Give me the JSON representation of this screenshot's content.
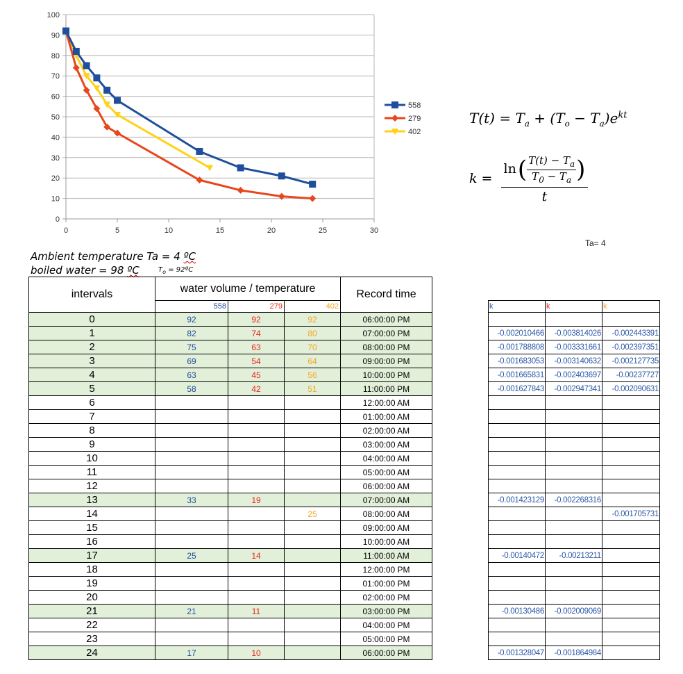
{
  "chart_data": {
    "type": "line",
    "title": "",
    "xlabel": "",
    "ylabel": "",
    "xlim": [
      0,
      30
    ],
    "ylim": [
      0,
      100
    ],
    "x_ticks": [
      0,
      5,
      10,
      15,
      20,
      25,
      30
    ],
    "y_ticks": [
      0,
      10,
      20,
      30,
      40,
      50,
      60,
      70,
      80,
      90,
      100
    ],
    "grid": "horizontal",
    "legend_position": "right",
    "series": [
      {
        "name": "558",
        "color": "#1f4e9c",
        "marker": "square",
        "points": [
          [
            0,
            92
          ],
          [
            1,
            82
          ],
          [
            2,
            75
          ],
          [
            3,
            69
          ],
          [
            4,
            63
          ],
          [
            5,
            58
          ],
          [
            13,
            33
          ],
          [
            17,
            25
          ],
          [
            21,
            21
          ],
          [
            24,
            17
          ]
        ]
      },
      {
        "name": "279",
        "color": "#e8461b",
        "marker": "diamond",
        "points": [
          [
            0,
            92
          ],
          [
            1,
            74
          ],
          [
            2,
            63
          ],
          [
            3,
            54
          ],
          [
            4,
            45
          ],
          [
            5,
            42
          ],
          [
            13,
            19
          ],
          [
            17,
            14
          ],
          [
            21,
            11
          ],
          [
            24,
            10
          ]
        ]
      },
      {
        "name": "402",
        "color": "#ffd21a",
        "marker": "triangle",
        "points": [
          [
            0,
            92
          ],
          [
            1,
            80
          ],
          [
            2,
            70
          ],
          [
            3,
            64
          ],
          [
            4,
            56
          ],
          [
            5,
            51
          ],
          [
            14,
            25
          ]
        ]
      }
    ]
  },
  "formula_text": {
    "eq1_lhs": "T(t) = T",
    "eq1_a": "a",
    "eq1_mid": " + (T",
    "eq1_o": "o",
    "eq1_minus": " − T",
    "eq1_a2": "a",
    "eq1_e": ")e",
    "eq1_exp": "kt",
    "k_lhs": "k =",
    "ln": "ln",
    "inner_num": "T(t) − T",
    "inner_num_sub": "a",
    "inner_den": "T",
    "inner_den_sub0": "0",
    "inner_den_minus": " − T",
    "inner_den_sub": "a",
    "den_t": "t"
  },
  "ta_note": "Ta= 4",
  "notes": {
    "ambient_pre": "Ambient temperature Ta = 4 ",
    "ambient_unit": "ºC",
    "boiled_pre": "boiled water = 98 ",
    "boiled_unit": "ºC",
    "t0_sym": "T",
    "t0_sub": "o",
    "t0_val": " = 92ºC"
  },
  "table": {
    "intervals_header": "intervals",
    "volume_header": "water volume / temperature",
    "record_header": "Record time",
    "volumes": [
      "558",
      "279",
      "402"
    ],
    "rows": [
      {
        "i": "0",
        "a": "92",
        "b": "92",
        "c": "92",
        "t": "06:00:00 PM",
        "g": true
      },
      {
        "i": "1",
        "a": "82",
        "b": "74",
        "c": "80",
        "t": "07:00:00 PM",
        "g": true
      },
      {
        "i": "2",
        "a": "75",
        "b": "63",
        "c": "70",
        "t": "08:00:00 PM",
        "g": true
      },
      {
        "i": "3",
        "a": "69",
        "b": "54",
        "c": "64",
        "t": "09:00:00 PM",
        "g": true
      },
      {
        "i": "4",
        "a": "63",
        "b": "45",
        "c": "56",
        "t": "10:00:00 PM",
        "g": true
      },
      {
        "i": "5",
        "a": "58",
        "b": "42",
        "c": "51",
        "t": "11:00:00 PM",
        "g": true
      },
      {
        "i": "6",
        "a": "",
        "b": "",
        "c": "",
        "t": "12:00:00 AM",
        "g": false
      },
      {
        "i": "7",
        "a": "",
        "b": "",
        "c": "",
        "t": "01:00:00 AM",
        "g": false
      },
      {
        "i": "8",
        "a": "",
        "b": "",
        "c": "",
        "t": "02:00:00 AM",
        "g": false
      },
      {
        "i": "9",
        "a": "",
        "b": "",
        "c": "",
        "t": "03:00:00 AM",
        "g": false
      },
      {
        "i": "10",
        "a": "",
        "b": "",
        "c": "",
        "t": "04:00:00 AM",
        "g": false
      },
      {
        "i": "11",
        "a": "",
        "b": "",
        "c": "",
        "t": "05:00:00 AM",
        "g": false
      },
      {
        "i": "12",
        "a": "",
        "b": "",
        "c": "",
        "t": "06:00:00 AM",
        "g": false
      },
      {
        "i": "13",
        "a": "33",
        "b": "19",
        "c": "",
        "t": "07:00:00 AM",
        "g": true
      },
      {
        "i": "14",
        "a": "",
        "b": "",
        "c": "25",
        "t": "08:00:00 AM",
        "g": false
      },
      {
        "i": "15",
        "a": "",
        "b": "",
        "c": "",
        "t": "09:00:00 AM",
        "g": false
      },
      {
        "i": "16",
        "a": "",
        "b": "",
        "c": "",
        "t": "10:00:00 AM",
        "g": false
      },
      {
        "i": "17",
        "a": "25",
        "b": "14",
        "c": "",
        "t": "11:00:00 AM",
        "g": true
      },
      {
        "i": "18",
        "a": "",
        "b": "",
        "c": "",
        "t": "12:00:00 PM",
        "g": false
      },
      {
        "i": "19",
        "a": "",
        "b": "",
        "c": "",
        "t": "01:00:00 PM",
        "g": false
      },
      {
        "i": "20",
        "a": "",
        "b": "",
        "c": "",
        "t": "02:00:00 PM",
        "g": false
      },
      {
        "i": "21",
        "a": "21",
        "b": "11",
        "c": "",
        "t": "03:00:00 PM",
        "g": true
      },
      {
        "i": "22",
        "a": "",
        "b": "",
        "c": "",
        "t": "04:00:00 PM",
        "g": false
      },
      {
        "i": "23",
        "a": "",
        "b": "",
        "c": "",
        "t": "05:00:00 PM",
        "g": false
      },
      {
        "i": "24",
        "a": "17",
        "b": "10",
        "c": "",
        "t": "06:00:00 PM",
        "g": true
      }
    ]
  },
  "k_table": {
    "headers": [
      "k",
      "k",
      "k"
    ],
    "rows": [
      [
        "",
        "",
        ""
      ],
      [
        "-0.002010466",
        "-0.003814026",
        "-0.002443391"
      ],
      [
        "-0.001788808",
        "-0.003331661",
        "-0.002397351"
      ],
      [
        "-0.001683053",
        "-0.003140632",
        "-0.002127735"
      ],
      [
        "-0.001665831",
        "-0.002403697",
        "-0.00237727"
      ],
      [
        "-0.001627843",
        "-0.002947341",
        "-0.002090631"
      ],
      [
        "",
        "",
        ""
      ],
      [
        "",
        "",
        ""
      ],
      [
        "",
        "",
        ""
      ],
      [
        "",
        "",
        ""
      ],
      [
        "",
        "",
        ""
      ],
      [
        "",
        "",
        ""
      ],
      [
        "",
        "",
        ""
      ],
      [
        "-0.001423129",
        "-0.002268316",
        ""
      ],
      [
        "",
        "",
        "-0.001705731"
      ],
      [
        "",
        "",
        ""
      ],
      [
        "",
        "",
        ""
      ],
      [
        "-0.00140472",
        "-0.00213211",
        ""
      ],
      [
        "",
        "",
        ""
      ],
      [
        "",
        "",
        ""
      ],
      [
        "",
        "",
        ""
      ],
      [
        "-0.00130486",
        "-0.002009069",
        ""
      ],
      [
        "",
        "",
        ""
      ],
      [
        "",
        "",
        ""
      ],
      [
        "-0.001328047",
        "-0.001864984",
        ""
      ]
    ]
  }
}
